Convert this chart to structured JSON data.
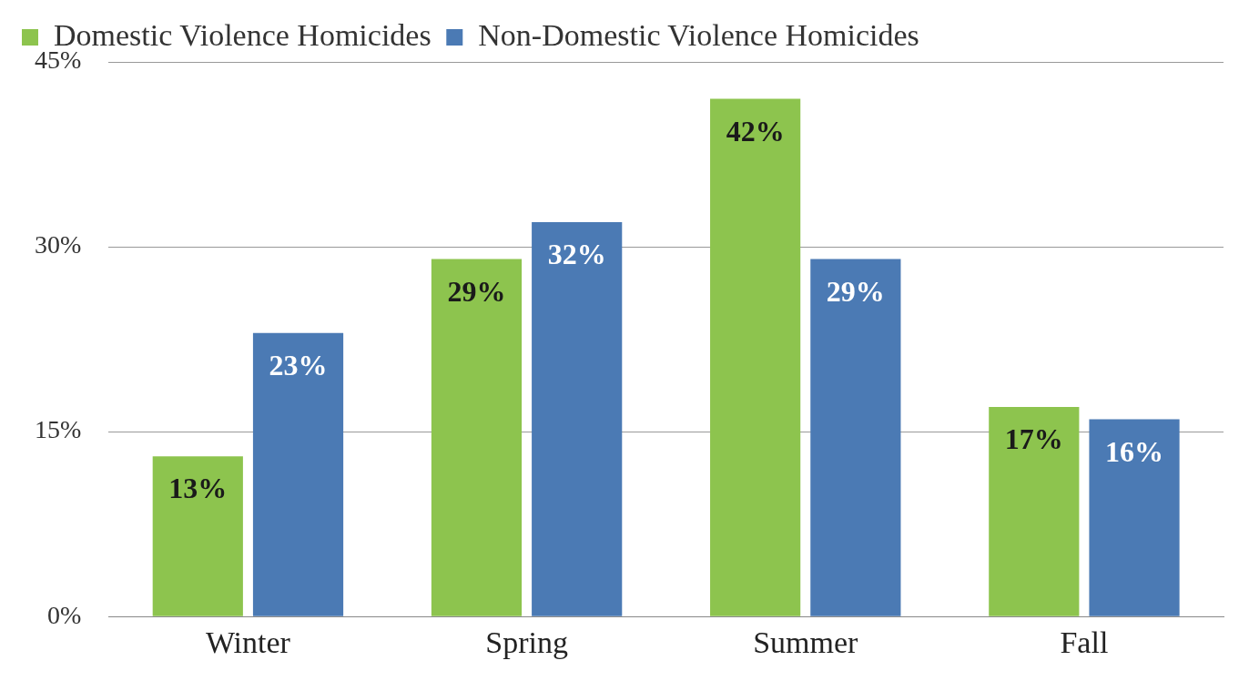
{
  "chart_data": {
    "type": "bar",
    "categories": [
      "Winter",
      "Spring",
      "Summer",
      "Fall"
    ],
    "series": [
      {
        "name": "Domestic Violence Homicides",
        "color": "#8dc44e",
        "values": [
          13,
          29,
          42,
          17
        ],
        "value_labels": [
          "13%",
          "29%",
          "42%",
          "17%"
        ]
      },
      {
        "name": "Non-Domestic Violence Homicides",
        "color": "#4b7ab4",
        "values": [
          23,
          32,
          29,
          16
        ],
        "value_labels": [
          "23%",
          "32%",
          "29%",
          "16%"
        ]
      }
    ],
    "ylim": [
      0,
      45
    ],
    "yticks": [
      {
        "value": 0,
        "label": "0%"
      },
      {
        "value": 15,
        "label": "15%"
      },
      {
        "value": 30,
        "label": "30%"
      },
      {
        "value": 45,
        "label": "45%"
      }
    ],
    "grid": "y",
    "legend": "top left"
  }
}
